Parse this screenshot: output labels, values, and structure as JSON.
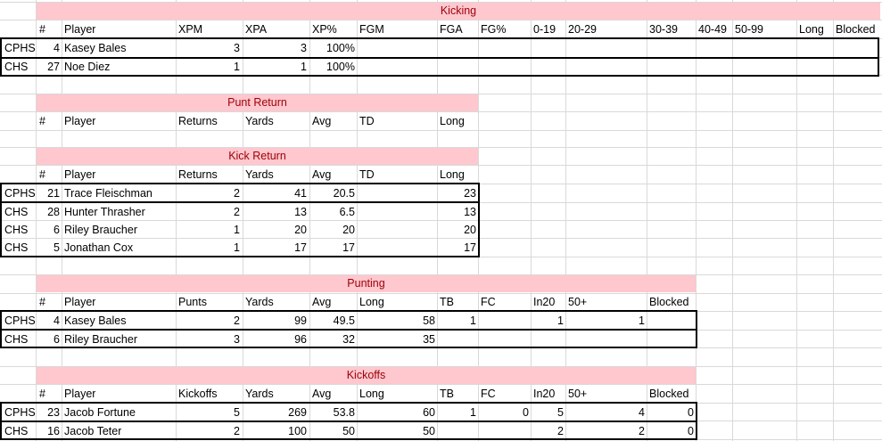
{
  "kicking": {
    "title": "Kicking",
    "headers": [
      "#",
      "Player",
      "XPM",
      "XPA",
      "XP%",
      "FGM",
      "FGA",
      "FG%",
      "0-19",
      "20-29",
      "30-39",
      "40-49",
      "50-99",
      "Long",
      "Blocked"
    ],
    "rows": [
      {
        "team": "CPHS",
        "num": "4",
        "player": "Kasey Bales",
        "xpm": "3",
        "xpa": "3",
        "xp_pct": "100%"
      },
      {
        "team": "CHS",
        "num": "27",
        "player": "Noe Diez",
        "xpm": "1",
        "xpa": "1",
        "xp_pct": "100%"
      }
    ]
  },
  "punt_return": {
    "title": "Punt Return",
    "headers": [
      "#",
      "Player",
      "Returns",
      "Yards",
      "Avg",
      "TD",
      "Long"
    ]
  },
  "kick_return": {
    "title": "Kick Return",
    "headers": [
      "#",
      "Player",
      "Returns",
      "Yards",
      "Avg",
      "TD",
      "Long"
    ],
    "rows": [
      {
        "team": "CPHS",
        "num": "21",
        "player": "Trace Fleischman",
        "returns": "2",
        "yards": "41",
        "avg": "20.5",
        "td": "",
        "long": "23"
      },
      {
        "team": "CHS",
        "num": "28",
        "player": "Hunter Thrasher",
        "returns": "2",
        "yards": "13",
        "avg": "6.5",
        "td": "",
        "long": "13"
      },
      {
        "team": "CHS",
        "num": "6",
        "player": "Riley Braucher",
        "returns": "1",
        "yards": "20",
        "avg": "20",
        "td": "",
        "long": "20"
      },
      {
        "team": "CHS",
        "num": "5",
        "player": "Jonathan Cox",
        "returns": "1",
        "yards": "17",
        "avg": "17",
        "td": "",
        "long": "17"
      }
    ]
  },
  "punting": {
    "title": "Punting",
    "headers": [
      "#",
      "Player",
      "Punts",
      "Yards",
      "Avg",
      "Long",
      "TB",
      "FC",
      "In20",
      "50+",
      "Blocked"
    ],
    "rows": [
      {
        "team": "CPHS",
        "num": "4",
        "player": "Kasey Bales",
        "punts": "2",
        "yards": "99",
        "avg": "49.5",
        "long": "58",
        "tb": "1",
        "fc": "",
        "in20": "1",
        "fifty": "1",
        "blocked": ""
      },
      {
        "team": "CHS",
        "num": "6",
        "player": "Riley Braucher",
        "punts": "3",
        "yards": "96",
        "avg": "32",
        "long": "35",
        "tb": "",
        "fc": "",
        "in20": "",
        "fifty": "",
        "blocked": ""
      }
    ]
  },
  "kickoffs": {
    "title": "Kickoffs",
    "headers": [
      "#",
      "Player",
      "Kickoffs",
      "Yards",
      "Avg",
      "Long",
      "TB",
      "FC",
      "In20",
      "50+",
      "Blocked"
    ],
    "rows": [
      {
        "team": "CPHS",
        "num": "23",
        "player": "Jacob Fortune",
        "kickoffs": "5",
        "yards": "269",
        "avg": "53.8",
        "long": "60",
        "tb": "1",
        "fc": "0",
        "in20": "5",
        "fifty": "4",
        "blocked": "0"
      },
      {
        "team": "CHS",
        "num": "16",
        "player": "Jacob Teter",
        "kickoffs": "2",
        "yards": "100",
        "avg": "50",
        "long": "50",
        "tb": "",
        "fc": "",
        "in20": "2",
        "fifty": "2",
        "blocked": "0"
      }
    ]
  },
  "colors": {
    "header_fill": "#ffc7ce",
    "header_text": "#9c0006",
    "gridline": "#d9d9d9"
  }
}
